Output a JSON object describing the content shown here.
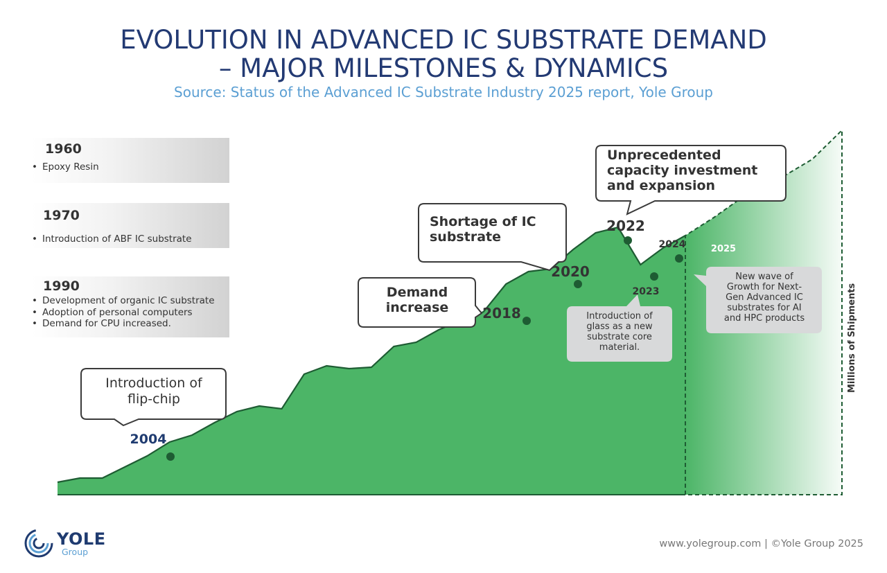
{
  "header": {
    "title_line1": "EVOLUTION IN ADVANCED IC SUBSTRATE DEMAND",
    "title_line2": "– MAJOR MILESTONES & DYNAMICS",
    "source": "Source: Status of the Advanced IC Substrate Industry 2025 report, Yole Group"
  },
  "milestones": [
    {
      "year": "1960",
      "items": [
        "Epoxy Resin"
      ]
    },
    {
      "year": "1970",
      "items": [
        "Introduction of ABF IC substrate"
      ]
    },
    {
      "year": "1990",
      "items": [
        "Development of organic IC substrate",
        "Adoption of personal computers",
        "Demand for CPU increased."
      ]
    }
  ],
  "callouts": {
    "flip_chip": [
      "Introduction of",
      "flip-chip"
    ],
    "demand": [
      "Demand",
      "increase"
    ],
    "shortage": [
      "Shortage of IC",
      "substrate"
    ],
    "capacity": [
      "Unprecedented",
      "capacity investment",
      "and expansion"
    ],
    "glass": [
      "Introduction of",
      "glass as a new",
      "substrate core",
      "material."
    ],
    "new_wave": [
      "New wave of",
      "Growth for Next-",
      "Gen Advanced IC",
      "substrates for AI",
      "and HPC products"
    ]
  },
  "chart_data": {
    "type": "area",
    "ylabel": "Millions of Shipments",
    "series_actual_points_count_note": "",
    "actual": [
      0.09,
      0.12,
      0.12,
      0.2,
      0.28,
      0.38,
      0.43,
      0.52,
      0.6,
      0.64,
      0.62,
      0.87,
      0.93,
      0.91,
      0.92,
      1.07,
      1.1,
      1.19,
      1.26,
      1.32,
      1.52,
      1.61,
      1.63,
      1.77,
      1.89,
      1.93,
      1.66,
      1.78,
      1.87
    ],
    "forecast": [
      1.87,
      2.0,
      2.17,
      2.29,
      2.42,
      2.63
    ],
    "labeled_years": [
      {
        "year": "2004",
        "value": 0.34
      },
      {
        "year": "2018",
        "value": 1.35
      },
      {
        "year": "2020",
        "value": 1.61
      },
      {
        "year": "2022",
        "value": 1.95
      },
      {
        "year": "2023",
        "value": 1.72
      },
      {
        "year": "2024",
        "value": 1.87
      },
      {
        "year": "2025",
        "value": 2.0
      }
    ],
    "colors": {
      "area": "#4cb567",
      "line": "#1e5c33",
      "marker": "#1e5c33",
      "forecast": "#4cb567"
    }
  },
  "footer": {
    "url": "www.yolegroup.com | ©Yole Group 2025",
    "logo_main": "YOLE",
    "logo_sub": "Group"
  }
}
